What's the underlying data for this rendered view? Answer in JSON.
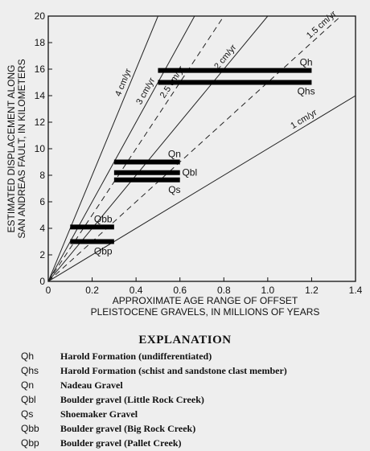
{
  "chart_data": {
    "type": "line",
    "xlabel": "APPROXIMATE AGE RANGE OF OFFSET PLEISTOCENE GRAVELS, IN MILLIONS OF YEARS",
    "xlabel_lines": [
      "APPROXIMATE AGE RANGE OF OFFSET",
      "PLEISTOCENE GRAVELS, IN MILLIONS OF YEARS"
    ],
    "ylabel": "ESTIMATED DISPLACEMENT ALONG SAN ANDREAS FAULT, IN KILOMETERS",
    "ylabel_lines": [
      "ESTIMATED DISPLACEMENT ALONG",
      "SAN ANDREAS FAULT, IN KILOMETERS"
    ],
    "xlim": [
      0,
      1.4
    ],
    "ylim": [
      0,
      20
    ],
    "xticks": [
      0,
      0.2,
      0.4,
      0.6,
      0.8,
      1.0,
      1.2,
      1.4
    ],
    "xtick_labels": [
      "0",
      "0.2",
      "0.4",
      "0.6",
      "0.8",
      "1.0",
      "1.2",
      "1.4"
    ],
    "yticks": [
      0,
      2,
      4,
      6,
      8,
      10,
      12,
      14,
      16,
      18,
      20
    ],
    "ytick_labels": [
      "0",
      "2",
      "4",
      "6",
      "8",
      "10",
      "12",
      "14",
      "16",
      "18",
      "20"
    ],
    "rate_lines": [
      {
        "label": "4 cm/yr",
        "rate": 40,
        "dashed": false
      },
      {
        "label": "3 cm/yr",
        "rate": 30,
        "dashed": false
      },
      {
        "label": "2.5 cm/yr",
        "rate": 25,
        "dashed": true
      },
      {
        "label": "2 cm/yr",
        "rate": 20,
        "dashed": false
      },
      {
        "label": "1.5 cm/yr",
        "rate": 15,
        "dashed": true
      },
      {
        "label": "1 cm/yr",
        "rate": 10,
        "dashed": false
      }
    ],
    "bars": [
      {
        "label": "Qh",
        "x_start": 0.5,
        "x_end": 1.2,
        "y": 15.9
      },
      {
        "label": "Qhs",
        "x_start": 0.5,
        "x_end": 1.2,
        "y": 15.0
      },
      {
        "label": "Qn",
        "x_start": 0.3,
        "x_end": 0.6,
        "y": 9.0
      },
      {
        "label": "Qbl",
        "x_start": 0.3,
        "x_end": 0.6,
        "y": 8.2
      },
      {
        "label": "Qs",
        "x_start": 0.3,
        "x_end": 0.6,
        "y": 7.65
      },
      {
        "label": "Qbb",
        "x_start": 0.1,
        "x_end": 0.3,
        "y": 4.1
      },
      {
        "label": "Qbp",
        "x_start": 0.1,
        "x_end": 0.3,
        "y": 3.0
      }
    ],
    "grid": false
  },
  "legend": {
    "title": "EXPLANATION",
    "items": [
      {
        "code": "Qh",
        "desc": "Harold Formation (undifferentiated)"
      },
      {
        "code": "Qhs",
        "desc": "Harold Formation (schist and sandstone clast member)"
      },
      {
        "code": "Qn",
        "desc": "Nadeau Gravel"
      },
      {
        "code": "Qbl",
        "desc": "Boulder gravel (Little Rock Creek)"
      },
      {
        "code": "Qs",
        "desc": "Shoemaker Gravel"
      },
      {
        "code": "Qbb",
        "desc": "Boulder gravel (Big Rock Creek)"
      },
      {
        "code": "Qbp",
        "desc": "Boulder gravel (Pallet Creek)"
      }
    ]
  }
}
